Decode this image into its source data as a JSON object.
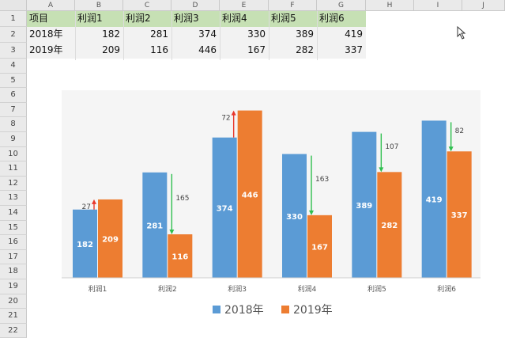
{
  "columns": [
    "A",
    "B",
    "C",
    "D",
    "E",
    "F",
    "G",
    "H",
    "I",
    "J"
  ],
  "rows": [
    "1",
    "2",
    "3",
    "4",
    "5",
    "6",
    "7",
    "8",
    "9",
    "10",
    "11",
    "12",
    "13",
    "14",
    "15",
    "16",
    "17",
    "18",
    "19",
    "20",
    "21",
    "22"
  ],
  "table": {
    "header": [
      "项目",
      "利润1",
      "利润2",
      "利润3",
      "利润4",
      "利润5",
      "利润6"
    ],
    "rows": [
      {
        "label": "2018年",
        "values": [
          "182",
          "281",
          "374",
          "330",
          "389",
          "419"
        ]
      },
      {
        "label": "2019年",
        "values": [
          "209",
          "116",
          "446",
          "167",
          "282",
          "337"
        ]
      }
    ]
  },
  "colors": {
    "series_2018": "#5b9bd5",
    "series_2019": "#ed7d31",
    "up_arrow": "#e8372c",
    "down_arrow": "#2fbf4f",
    "header_fill": "#c6e0b4"
  },
  "chart_data": {
    "type": "bar",
    "categories": [
      "利润1",
      "利润2",
      "利润3",
      "利润4",
      "利润5",
      "利润6"
    ],
    "series": [
      {
        "name": "2018年",
        "values": [
          182,
          281,
          374,
          330,
          389,
          419
        ]
      },
      {
        "name": "2019年",
        "values": [
          209,
          116,
          446,
          167,
          282,
          337
        ]
      }
    ],
    "differences": [
      27,
      165,
      72,
      163,
      107,
      82
    ],
    "direction": [
      "up",
      "down",
      "up",
      "down",
      "down",
      "down"
    ],
    "legend": [
      "2018年",
      "2019年"
    ],
    "legend_position": "bottom",
    "ylim": [
      0,
      500
    ],
    "grid": false
  }
}
